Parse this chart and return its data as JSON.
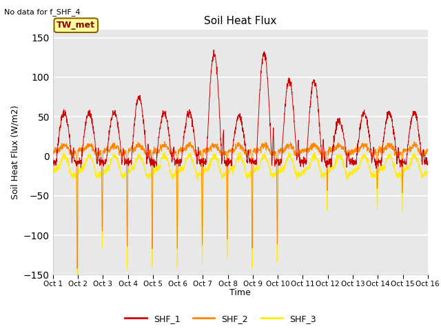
{
  "title": "Soil Heat Flux",
  "subtitle": "No data for f_SHF_4",
  "ylabel": "Soil Heat Flux (W/m2)",
  "xlabel": "Time",
  "ylim": [
    -150,
    160
  ],
  "yticks": [
    -150,
    -100,
    -50,
    0,
    50,
    100,
    150
  ],
  "bg_color": "#e8e8e8",
  "fig_color": "#ffffff",
  "grid_color": "#ffffff",
  "annotation_text": "TW_met",
  "annotation_bg": "#ffff99",
  "annotation_border": "#8B0000",
  "line_colors": {
    "SHF_1": "#cc0000",
    "SHF_2": "#ff8800",
    "SHF_3": "#ffee00"
  },
  "legend_labels": [
    "SHF_1",
    "SHF_2",
    "SHF_3"
  ],
  "n_days": 15,
  "pts_per_day": 144,
  "figsize": [
    6.4,
    4.8
  ],
  "dpi": 100
}
